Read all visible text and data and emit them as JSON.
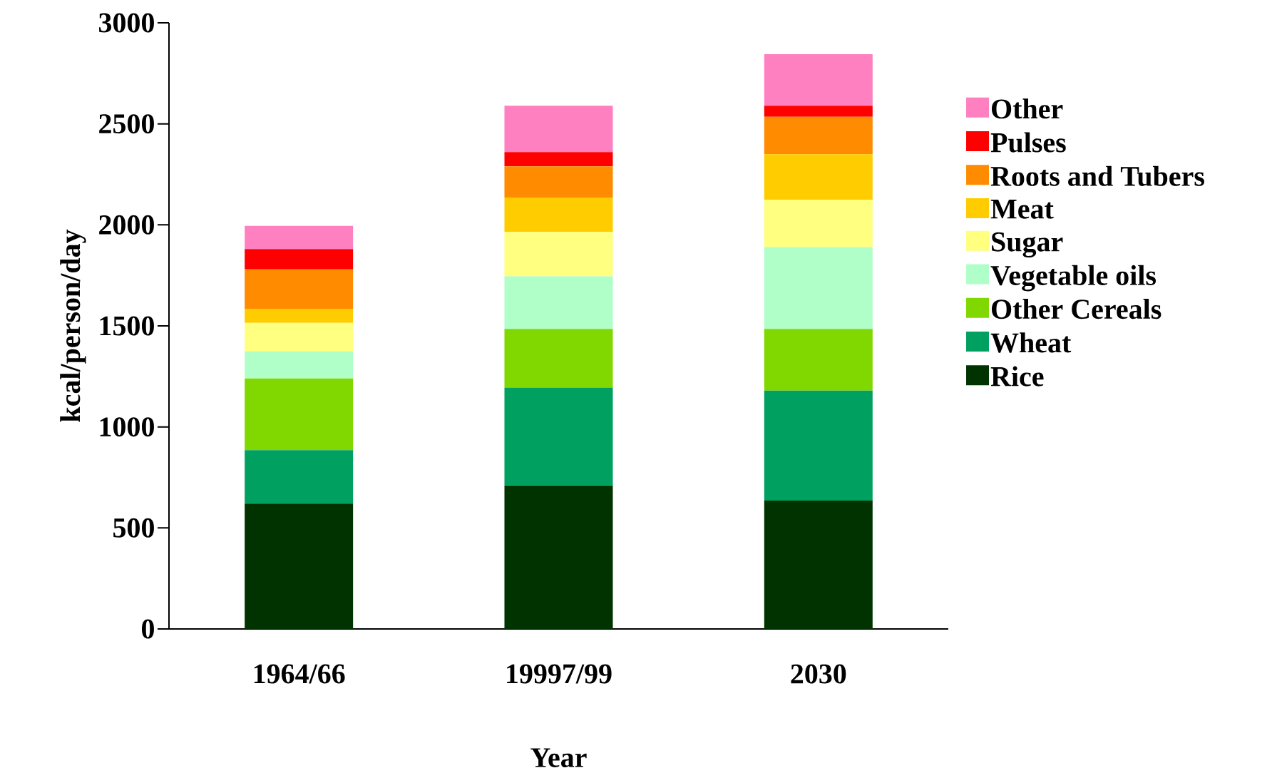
{
  "chart_data": {
    "type": "bar",
    "stacked": true,
    "xlabel": "Year",
    "ylabel": "kcal/person/day",
    "categories": [
      "1964/66",
      "19997/99",
      "2030"
    ],
    "ylim": [
      0,
      3000
    ],
    "yticks": [
      0,
      500,
      1000,
      1500,
      2000,
      2500,
      3000
    ],
    "grid": false,
    "legend": "right",
    "series": [
      {
        "name": "Rice",
        "color": "#003300",
        "values": [
          620,
          710,
          635
        ]
      },
      {
        "name": "Wheat",
        "color": "#00a060",
        "values": [
          265,
          485,
          545
        ]
      },
      {
        "name": "Other Cereals",
        "color": "#80d800",
        "values": [
          355,
          290,
          305
        ]
      },
      {
        "name": "Vegetable oils",
        "color": "#b0ffc8",
        "values": [
          135,
          260,
          405
        ]
      },
      {
        "name": "Sugar",
        "color": "#ffff80",
        "values": [
          140,
          220,
          235
        ]
      },
      {
        "name": "Meat",
        "color": "#ffcc00",
        "values": [
          70,
          170,
          225
        ]
      },
      {
        "name": "Roots and Tubers",
        "color": "#ff8c00",
        "values": [
          195,
          155,
          185
        ]
      },
      {
        "name": "Pulses",
        "color": "#ff0000",
        "values": [
          100,
          70,
          55
        ]
      },
      {
        "name": "Other",
        "color": "#ff80c0",
        "values": [
          115,
          230,
          255
        ]
      }
    ]
  }
}
